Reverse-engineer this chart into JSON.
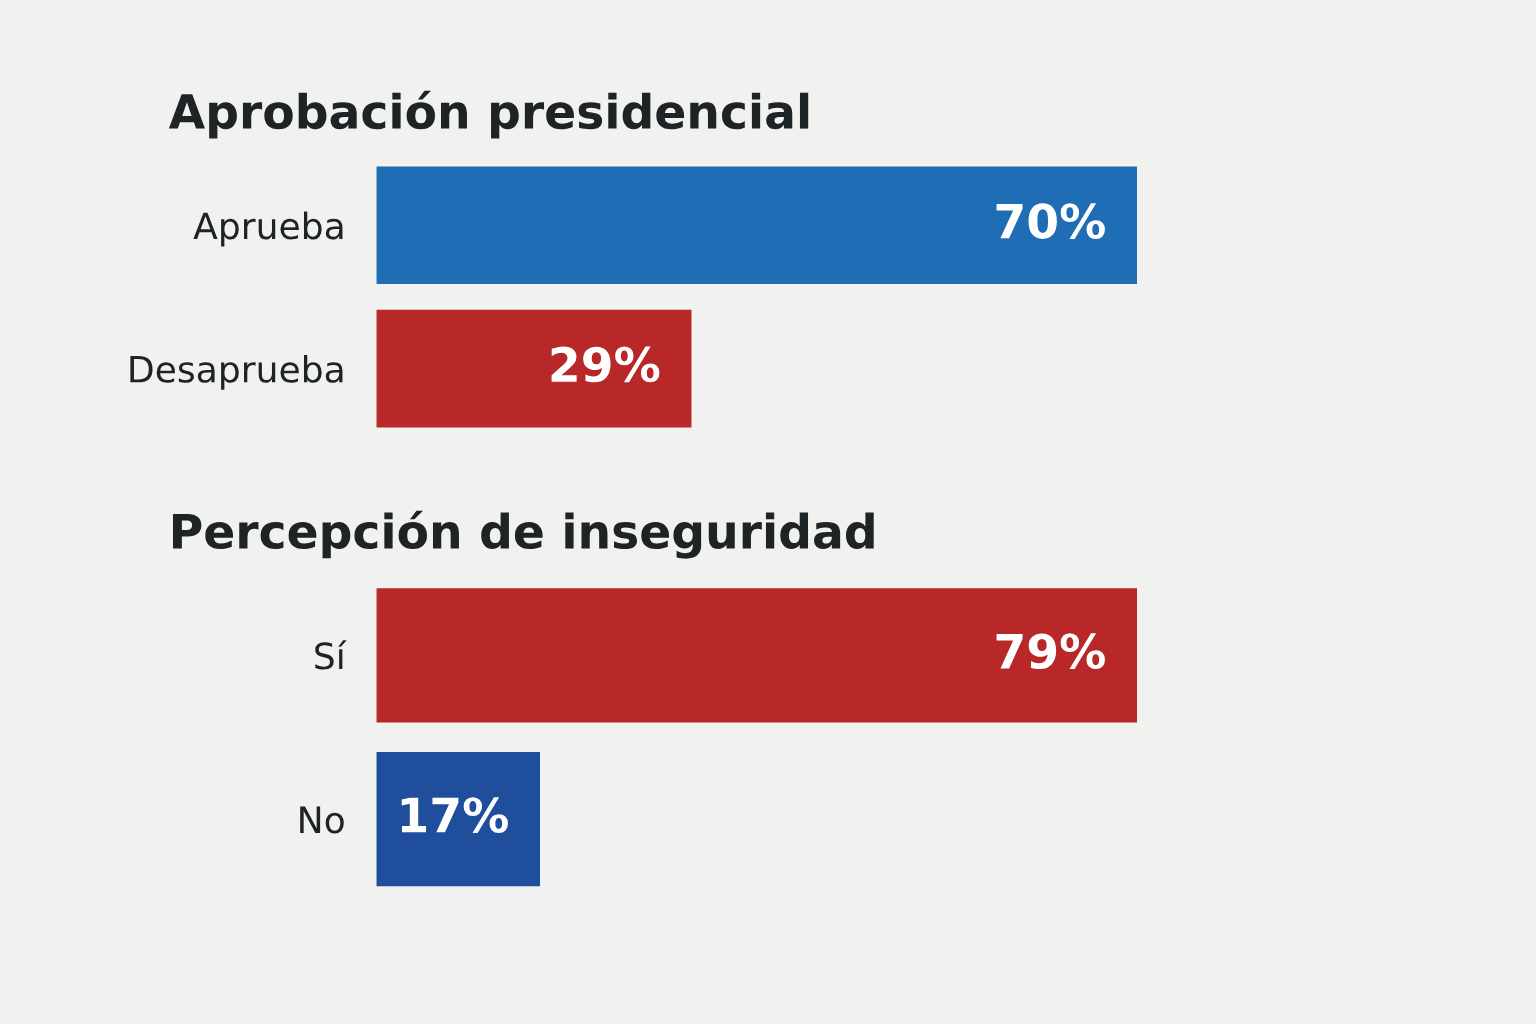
{
  "chart_data": [
    {
      "type": "bar",
      "orientation": "horizontal",
      "title": "Aprobación presidencial",
      "categories": [
        "Aprueba",
        "Desaprueba"
      ],
      "values": [
        70,
        29
      ],
      "colors": [
        "#1f6db5",
        "#b82828"
      ],
      "value_labels": [
        "70%",
        "29%"
      ],
      "tick_labels": "y"
    },
    {
      "type": "bar",
      "orientation": "horizontal",
      "title": "Percepción de inseguridad",
      "categories": [
        "Sí",
        "No"
      ],
      "values": [
        79,
        17
      ],
      "colors": [
        "#b82828",
        "#1f4f9c"
      ],
      "value_labels": [
        "79%",
        "17%"
      ],
      "tick_labels": "y"
    }
  ]
}
